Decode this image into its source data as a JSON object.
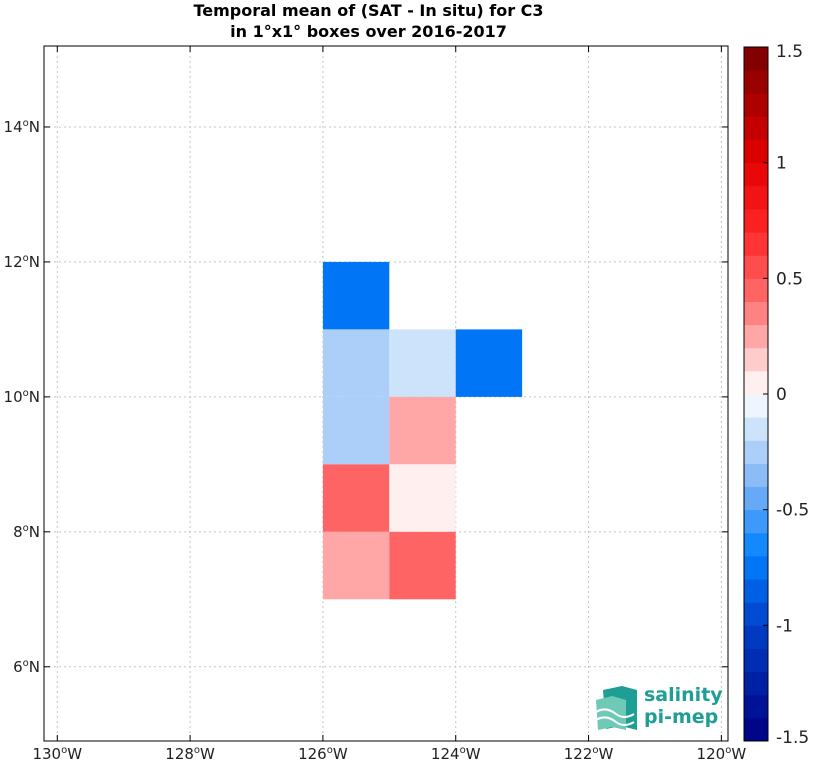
{
  "chart_data": {
    "type": "heatmap",
    "title_lines": [
      "Temporal mean of (SAT - In situ) for C3",
      "in 1°x1° boxes over 2016-2017"
    ],
    "xlim": [
      -130.2,
      -119.9
    ],
    "ylim": [
      4.9,
      15.2
    ],
    "x_ticks": [
      {
        "value": -130,
        "label": "130",
        "unit": "W"
      },
      {
        "value": -128,
        "label": "128",
        "unit": "W"
      },
      {
        "value": -126,
        "label": "126",
        "unit": "W"
      },
      {
        "value": -124,
        "label": "124",
        "unit": "W"
      },
      {
        "value": -122,
        "label": "122",
        "unit": "W"
      },
      {
        "value": -120,
        "label": "120",
        "unit": "W"
      }
    ],
    "y_ticks": [
      {
        "value": 6,
        "label": "6",
        "unit": "N"
      },
      {
        "value": 8,
        "label": "8",
        "unit": "N"
      },
      {
        "value": 10,
        "label": "10",
        "unit": "N"
      },
      {
        "value": 12,
        "label": "12",
        "unit": "N"
      },
      {
        "value": 14,
        "label": "14",
        "unit": "N"
      }
    ],
    "grid": true,
    "cells": [
      {
        "lon": -126,
        "lat": 11,
        "value": -0.75
      },
      {
        "lon": -126,
        "lat": 10,
        "value": -0.25
      },
      {
        "lon": -125,
        "lat": 10,
        "value": -0.15
      },
      {
        "lon": -124,
        "lat": 10,
        "value": -0.75
      },
      {
        "lon": -126,
        "lat": 9,
        "value": -0.25
      },
      {
        "lon": -125,
        "lat": 9,
        "value": 0.25
      },
      {
        "lon": -126,
        "lat": 8,
        "value": 0.45
      },
      {
        "lon": -125,
        "lat": 8,
        "value": 0.05
      },
      {
        "lon": -126,
        "lat": 7,
        "value": 0.25
      },
      {
        "lon": -125,
        "lat": 7,
        "value": 0.45
      }
    ],
    "colorbar": {
      "min": -1.5,
      "max": 1.5,
      "step": 0.1,
      "tick_values": [
        1.5,
        1,
        0.5,
        0,
        -0.5,
        -1,
        -1.5
      ],
      "tick_labels": [
        "1.5",
        "1",
        "0.5",
        "0",
        "-0.5",
        "-1",
        "-1.5"
      ]
    }
  },
  "logo": {
    "line1": "salinity",
    "line2": "pi-mep"
  }
}
